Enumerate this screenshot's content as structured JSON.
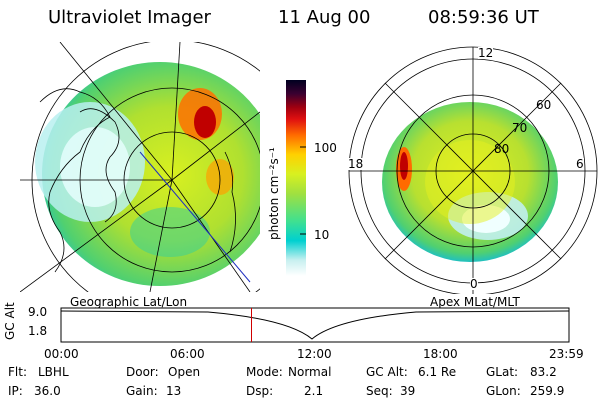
{
  "header": {
    "instrument": "Ultraviolet Imager",
    "date": "11 Aug 00",
    "time": "08:59:36 UT"
  },
  "colorbar": {
    "unit": "photon cm⁻²s⁻¹",
    "tick_high": "100",
    "tick_low": "10"
  },
  "polar": {
    "labels": {
      "top": "12",
      "left": "18",
      "right": "6",
      "bottom": "0",
      "r60": "60",
      "r70": "70",
      "r80": "80"
    }
  },
  "panels": {
    "left_caption": "Geographic Lat/Lon",
    "right_caption": "Apex MLat/MLT"
  },
  "altitude_plot": {
    "ylabel": "GC Alt",
    "ytick_top": "9.0",
    "ytick_bottom": "1.8",
    "xticks": [
      "00:00",
      "06:00",
      "12:00",
      "18:00",
      "23:59"
    ],
    "current_time_fraction": 0.375
  },
  "info": [
    [
      {
        "k": "Flt:",
        "v": "LBHL"
      },
      {
        "k": "Door:",
        "v": "Open"
      },
      {
        "k": "Mode:",
        "v": "Normal"
      },
      {
        "k": "GC Alt:",
        "v": "6.1 Re"
      },
      {
        "k": "GLat:",
        "v": "83.2"
      }
    ],
    [
      {
        "k": "IP:",
        "v": "36.0"
      },
      {
        "k": "Gain:",
        "v": "13"
      },
      {
        "k": "Dsp:",
        "v": "2.1"
      },
      {
        "k": "Seq:",
        "v": "39"
      },
      {
        "k": "GLon:",
        "v": "259.9"
      }
    ]
  ],
  "colors": {
    "cb_stops": [
      "#ffffff",
      "#00d0d0",
      "#a0e040",
      "#ffd000",
      "#ff6a00",
      "#c00000",
      "#3a0030",
      "#000020"
    ]
  }
}
